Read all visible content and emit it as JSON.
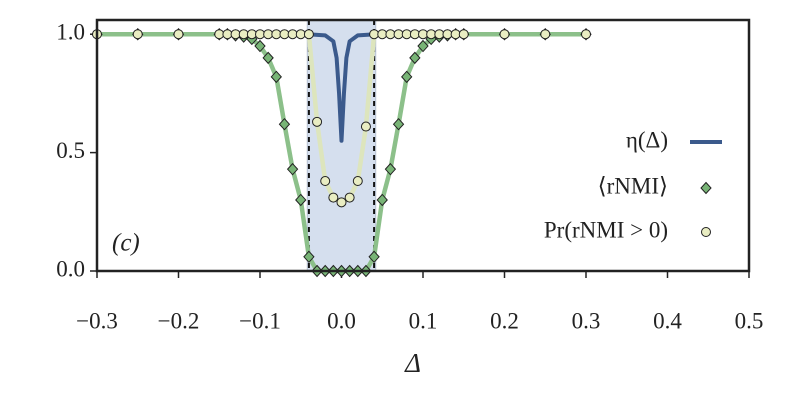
{
  "chart_data": {
    "type": "line",
    "annotation": "(c)",
    "x_label": "Δ",
    "xlim": [
      -0.3,
      0.5
    ],
    "ylim": [
      0,
      1.06
    ],
    "xticks": [
      {
        "value": -0.3,
        "label": "−0.3"
      },
      {
        "value": -0.2,
        "label": "−0.2"
      },
      {
        "value": -0.1,
        "label": "−0.1"
      },
      {
        "value": 0,
        "label": "0.0"
      },
      0.1,
      0.2,
      0.3,
      0.4,
      0.5
    ],
    "yticks": [
      {
        "value": 0,
        "label": "0.0"
      },
      0.5,
      {
        "value": 1,
        "label": "1.0"
      }
    ],
    "shaded_region": [
      -0.042,
      0.042
    ],
    "shaded_color": "#d5dfee",
    "dashed_lines": [
      -0.04,
      0.04
    ],
    "series": [
      {
        "name": "η(Δ)",
        "color": "#3b5a8c",
        "marker": "none",
        "x": [
          -0.042,
          -0.02,
          -0.01,
          -0.006,
          -0.003,
          0,
          0.003,
          0.006,
          0.01,
          0.02,
          0.042
        ],
        "values": [
          1,
          0.995,
          0.97,
          0.9,
          0.75,
          0.55,
          0.75,
          0.9,
          0.97,
          0.995,
          1
        ]
      },
      {
        "name": "⟨rNMI⟩",
        "color": "#8cc08a",
        "marker": "diamond",
        "marker_color": "#78b476",
        "x": [
          -0.3,
          -0.25,
          -0.2,
          -0.15,
          -0.14,
          -0.13,
          -0.12,
          -0.11,
          -0.1,
          -0.09,
          -0.08,
          -0.07,
          -0.06,
          -0.05,
          -0.04,
          -0.03,
          -0.02,
          -0.01,
          0,
          0.01,
          0.02,
          0.03,
          0.04,
          0.05,
          0.06,
          0.07,
          0.08,
          0.09,
          0.1,
          0.11,
          0.12,
          0.13,
          0.14,
          0.15,
          0.2,
          0.25,
          0.3
        ],
        "values": [
          1,
          1,
          1,
          1,
          1,
          0.995,
          0.99,
          0.98,
          0.95,
          0.9,
          0.82,
          0.62,
          0.43,
          0.3,
          0.06,
          0,
          0,
          0,
          0,
          0,
          0,
          0,
          0.06,
          0.3,
          0.43,
          0.62,
          0.82,
          0.9,
          0.95,
          0.98,
          0.99,
          0.995,
          1,
          1,
          1,
          1,
          1
        ]
      },
      {
        "name": "Pr(rNMI > 0)",
        "color": "#dde5bd",
        "marker": "circle",
        "marker_color": "#e9edc2",
        "x": [
          -0.3,
          -0.25,
          -0.2,
          -0.15,
          -0.14,
          -0.13,
          -0.12,
          -0.11,
          -0.1,
          -0.09,
          -0.08,
          -0.07,
          -0.06,
          -0.05,
          -0.04,
          -0.03,
          -0.02,
          -0.01,
          0,
          0.01,
          0.02,
          0.03,
          0.04,
          0.05,
          0.06,
          0.07,
          0.08,
          0.09,
          0.1,
          0.11,
          0.12,
          0.13,
          0.14,
          0.15,
          0.2,
          0.25,
          0.3
        ],
        "values": [
          1,
          1,
          1,
          1,
          1,
          1,
          1,
          1,
          1,
          1,
          1,
          1,
          1,
          1,
          1,
          0.63,
          0.38,
          0.31,
          0.29,
          0.31,
          0.38,
          0.61,
          1,
          1,
          1,
          1,
          1,
          1,
          1,
          1,
          1,
          1,
          1,
          1,
          1,
          1,
          1
        ]
      }
    ]
  }
}
